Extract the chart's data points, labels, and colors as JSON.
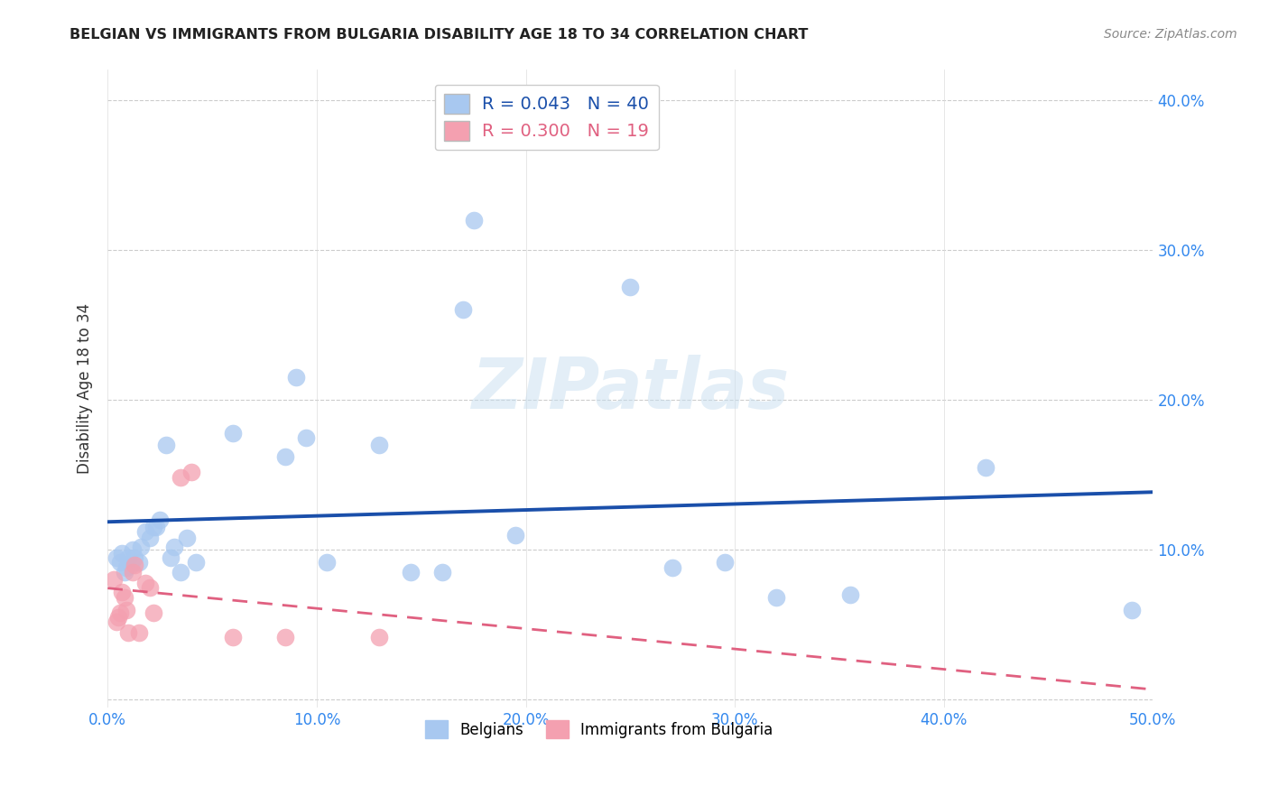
{
  "title": "BELGIAN VS IMMIGRANTS FROM BULGARIA DISABILITY AGE 18 TO 34 CORRELATION CHART",
  "source": "Source: ZipAtlas.com",
  "ylabel_label": "Disability Age 18 to 34",
  "xlim": [
    0.0,
    0.5
  ],
  "ylim": [
    -0.005,
    0.42
  ],
  "x_ticks": [
    0.0,
    0.1,
    0.2,
    0.3,
    0.4,
    0.5
  ],
  "x_tick_labels": [
    "0.0%",
    "10.0%",
    "20.0%",
    "30.0%",
    "40.0%",
    "50.0%"
  ],
  "y_ticks": [
    0.0,
    0.1,
    0.2,
    0.3,
    0.4
  ],
  "y_tick_labels": [
    "",
    "10.0%",
    "20.0%",
    "30.0%",
    "40.0%"
  ],
  "belgian_R": 0.043,
  "belgian_N": 40,
  "bulgaria_R": 0.3,
  "bulgaria_N": 19,
  "belgian_color": "#a8c8f0",
  "bulgarian_color": "#f4a0b0",
  "belgian_line_color": "#1a4faa",
  "bulgarian_line_color": "#e06080",
  "watermark": "ZIPatlas",
  "belgians_x": [
    0.004,
    0.006,
    0.007,
    0.008,
    0.009,
    0.01,
    0.011,
    0.012,
    0.013,
    0.015,
    0.016,
    0.018,
    0.02,
    0.022,
    0.023,
    0.025,
    0.028,
    0.03,
    0.032,
    0.035,
    0.038,
    0.042,
    0.06,
    0.085,
    0.09,
    0.095,
    0.105,
    0.13,
    0.145,
    0.16,
    0.17,
    0.175,
    0.195,
    0.25,
    0.27,
    0.295,
    0.32,
    0.355,
    0.42,
    0.49
  ],
  "belgians_y": [
    0.095,
    0.092,
    0.098,
    0.085,
    0.088,
    0.095,
    0.09,
    0.1,
    0.095,
    0.092,
    0.102,
    0.112,
    0.108,
    0.115,
    0.115,
    0.12,
    0.17,
    0.095,
    0.102,
    0.085,
    0.108,
    0.092,
    0.178,
    0.162,
    0.215,
    0.175,
    0.092,
    0.17,
    0.085,
    0.085,
    0.26,
    0.32,
    0.11,
    0.275,
    0.088,
    0.092,
    0.068,
    0.07,
    0.155,
    0.06
  ],
  "bulgarians_x": [
    0.003,
    0.004,
    0.005,
    0.006,
    0.007,
    0.008,
    0.009,
    0.01,
    0.012,
    0.013,
    0.015,
    0.018,
    0.02,
    0.022,
    0.035,
    0.04,
    0.06,
    0.085,
    0.13
  ],
  "bulgarians_y": [
    0.08,
    0.052,
    0.055,
    0.058,
    0.072,
    0.068,
    0.06,
    0.045,
    0.085,
    0.09,
    0.045,
    0.078,
    0.075,
    0.058,
    0.148,
    0.152,
    0.042,
    0.042,
    0.042
  ]
}
